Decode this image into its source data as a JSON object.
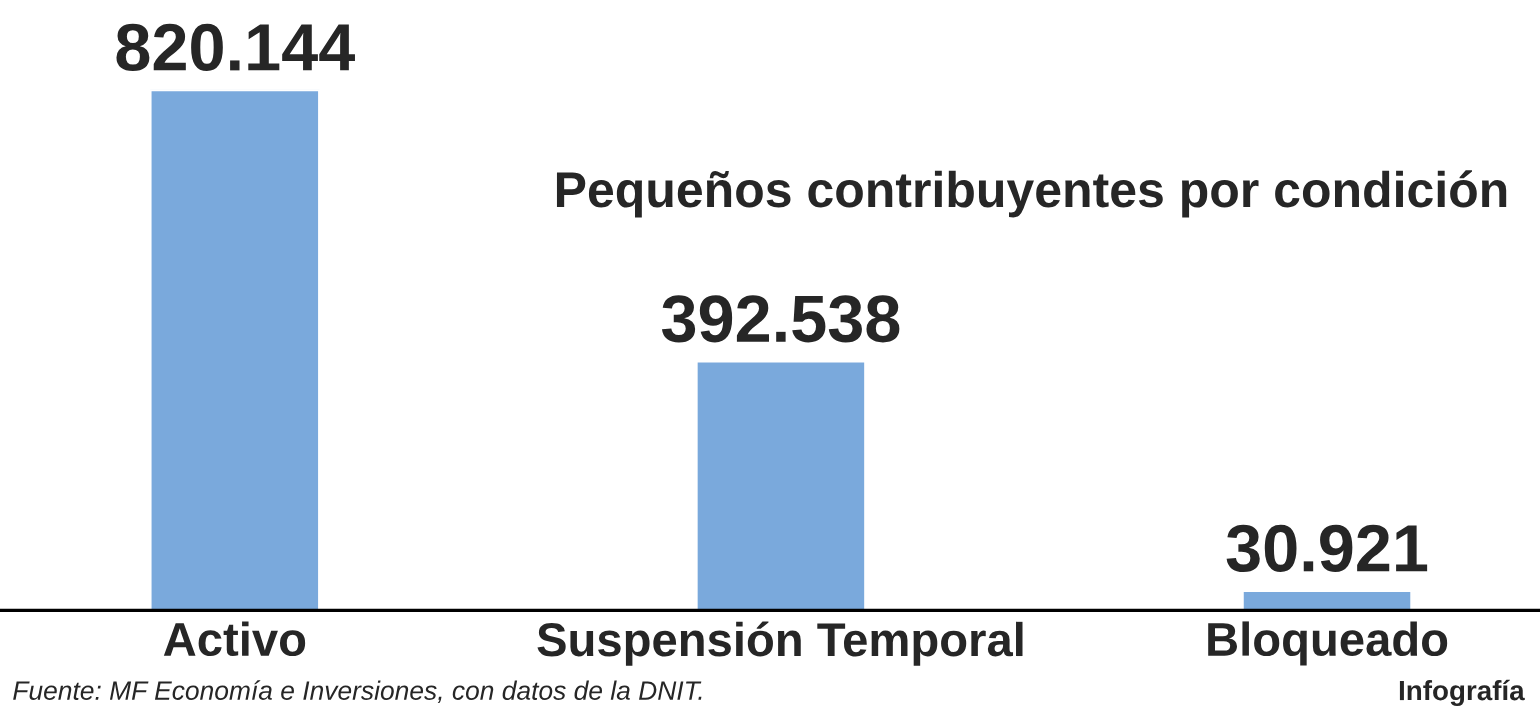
{
  "chart_data": {
    "type": "bar",
    "title": "Pequeños contribuyentes por condición",
    "categories": [
      "Activo",
      "Suspensión Temporal",
      "Bloqueado"
    ],
    "values": [
      820144,
      392538,
      30921
    ],
    "value_labels": [
      "820.144",
      "392.538",
      "30.921"
    ],
    "color": "#7aa9dc",
    "grid": false,
    "legend": false,
    "annotations": [
      "Fuente: MF Economía e Inversiones, con datos de la DNIT.",
      "Infografía"
    ]
  }
}
